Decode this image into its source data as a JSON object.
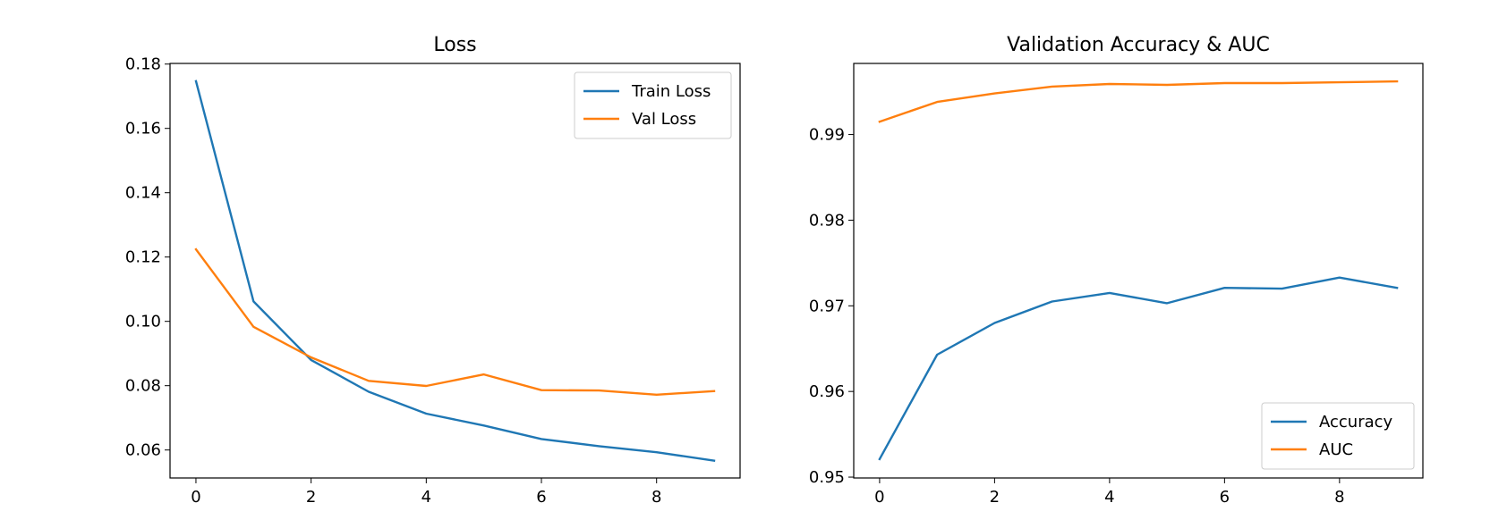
{
  "chart_data": [
    {
      "type": "line",
      "title": "Loss",
      "xlabel": "",
      "ylabel": "",
      "x": [
        0,
        1,
        2,
        3,
        4,
        5,
        6,
        7,
        8,
        9
      ],
      "xlim": [
        -0.45,
        9.45
      ],
      "ylim": [
        0.0513,
        0.1802
      ],
      "xticks": [
        0,
        2,
        4,
        6,
        8
      ],
      "xtick_labels": [
        "0",
        "2",
        "4",
        "6",
        "8"
      ],
      "yticks": [
        0.06,
        0.08,
        0.1,
        0.12,
        0.14,
        0.16,
        0.18
      ],
      "ytick_labels": [
        "0.06",
        "0.08",
        "0.10",
        "0.12",
        "0.14",
        "0.16",
        "0.18"
      ],
      "grid": false,
      "legend_position": "top-right",
      "series": [
        {
          "name": "Train Loss",
          "color": "#1f77b4",
          "values": [
            0.1747,
            0.1062,
            0.088,
            0.0781,
            0.0713,
            0.0676,
            0.0634,
            0.0612,
            0.0593,
            0.0567
          ]
        },
        {
          "name": "Val Loss",
          "color": "#ff7f0e",
          "values": [
            0.1224,
            0.0983,
            0.0888,
            0.0815,
            0.0799,
            0.0835,
            0.0786,
            0.0785,
            0.0772,
            0.0783
          ]
        }
      ]
    },
    {
      "type": "line",
      "title": "Validation Accuracy & AUC",
      "xlabel": "",
      "ylabel": "",
      "x": [
        0,
        1,
        2,
        3,
        4,
        5,
        6,
        7,
        8,
        9
      ],
      "xlim": [
        -0.45,
        9.45
      ],
      "ylim": [
        0.9499,
        0.9983
      ],
      "xticks": [
        0,
        2,
        4,
        6,
        8
      ],
      "xtick_labels": [
        "0",
        "2",
        "4",
        "6",
        "8"
      ],
      "yticks": [
        0.95,
        0.96,
        0.97,
        0.98,
        0.99
      ],
      "ytick_labels": [
        "0.95",
        "0.96",
        "0.97",
        "0.98",
        "0.99"
      ],
      "grid": false,
      "legend_position": "bottom-right",
      "series": [
        {
          "name": "Accuracy",
          "color": "#1f77b4",
          "values": [
            0.9521,
            0.9643,
            0.968,
            0.9705,
            0.9715,
            0.9703,
            0.9721,
            0.972,
            0.9733,
            0.9721
          ]
        },
        {
          "name": "AUC",
          "color": "#ff7f0e",
          "values": [
            0.9915,
            0.9938,
            0.9948,
            0.9956,
            0.9959,
            0.9958,
            0.996,
            0.996,
            0.9961,
            0.9962
          ]
        }
      ]
    }
  ]
}
